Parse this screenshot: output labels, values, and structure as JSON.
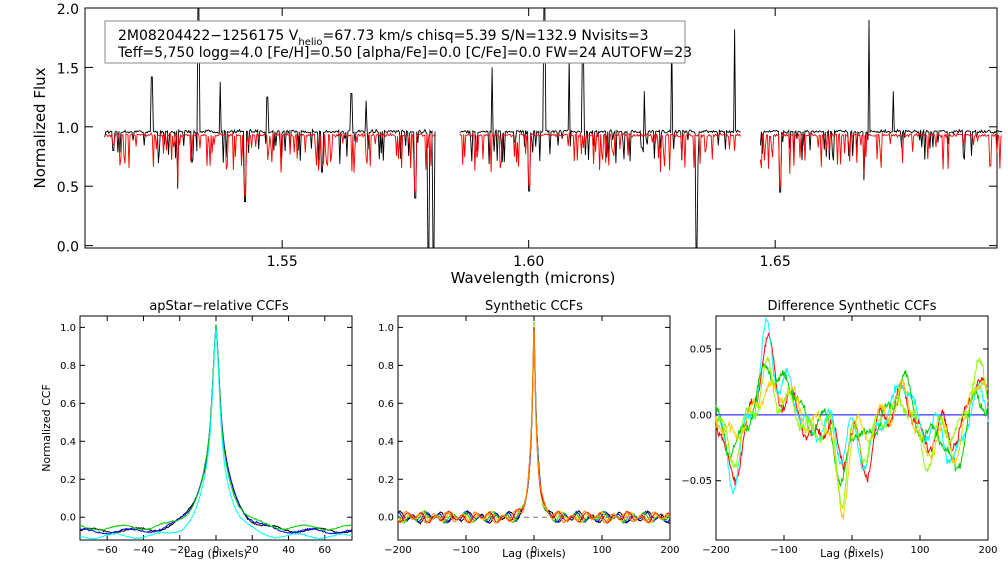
{
  "chart_data": [
    {
      "type": "line",
      "panel": "spectrum",
      "title": "",
      "xlabel": "Wavelength (microns)",
      "ylabel": "Normalized Flux",
      "xlim": [
        1.51,
        1.695
      ],
      "ylim": [
        -0.02,
        2.0
      ],
      "x_ticks": [
        1.55,
        1.6,
        1.65
      ],
      "y_ticks": [
        0.0,
        0.5,
        1.0,
        1.5,
        2.0
      ],
      "info_line1": "2M08204422−1256175  V",
      "info_sub": "helio",
      "info_line1b": "=67.73 km/s  chisq=5.39  S/N=132.9  Nvisits=3",
      "info_line2": "Teff=5,750 logg=4.0 [Fe/H]=0.50 [alpha/Fe]=0.0 [C/Fe]=0.0 FW=24 AUTOFW=23",
      "chips": [
        [
          1.514,
          1.581
        ],
        [
          1.586,
          1.643
        ],
        [
          1.647,
          1.696
        ]
      ],
      "series": [
        {
          "color": "#000000",
          "level": 0.96
        },
        {
          "color": "#ff0000",
          "level": 0.93
        }
      ],
      "spikes": [
        {
          "x": 1.5236,
          "y": 1.42
        },
        {
          "x": 1.533,
          "y": 2.0
        },
        {
          "x": 1.5374,
          "y": 1.38
        },
        {
          "x": 1.5424,
          "y": 1.72
        },
        {
          "x": 1.547,
          "y": 1.25
        },
        {
          "x": 1.564,
          "y": 1.28
        },
        {
          "x": 1.567,
          "y": 1.22
        },
        {
          "x": 1.5926,
          "y": 1.5
        },
        {
          "x": 1.6032,
          "y": 2.0
        },
        {
          "x": 1.6082,
          "y": 1.58
        },
        {
          "x": 1.611,
          "y": 1.68
        },
        {
          "x": 1.6234,
          "y": 1.3
        },
        {
          "x": 1.629,
          "y": 1.78
        },
        {
          "x": 1.634,
          "y": 1.4
        },
        {
          "x": 1.6418,
          "y": 1.82
        },
        {
          "x": 1.651,
          "y": 1.62
        },
        {
          "x": 1.669,
          "y": 1.9
        },
        {
          "x": 1.674,
          "y": 1.3
        }
      ],
      "dips": [
        {
          "x": 1.5158,
          "y": 0.8
        },
        {
          "x": 1.5288,
          "y": 0.48
        },
        {
          "x": 1.5424,
          "y": 0.37
        },
        {
          "x": 1.558,
          "y": 0.62
        },
        {
          "x": 1.5769,
          "y": 0.4
        },
        {
          "x": 1.5797,
          "y": -0.02
        },
        {
          "x": 1.5806,
          "y": -0.02
        },
        {
          "x": 1.6,
          "y": 0.46
        },
        {
          "x": 1.634,
          "y": -0.02
        },
        {
          "x": 1.651,
          "y": 0.45
        },
        {
          "x": 1.668,
          "y": 0.55
        }
      ]
    },
    {
      "type": "line",
      "panel": "apstar-ccf",
      "title": "apStar−relative CCFs",
      "xlabel": "Lag (pixels)",
      "ylabel": "Normalized CCF",
      "xlim": [
        -75,
        75
      ],
      "ylim": [
        -0.12,
        1.06
      ],
      "x_ticks": [
        -60,
        -40,
        -20,
        0,
        20,
        40,
        60
      ],
      "y_ticks": [
        0.0,
        0.2,
        0.4,
        0.6,
        0.8,
        1.0
      ],
      "series": [
        {
          "color": "#000000",
          "width": 7.5,
          "base": -0.07
        },
        {
          "color": "#0000ff",
          "width": 7.8,
          "base": -0.075
        },
        {
          "color": "#00cc00",
          "width": 7.0,
          "base": -0.055
        },
        {
          "color": "#00ffff",
          "width": 6.5,
          "base": -0.1
        }
      ]
    },
    {
      "type": "line",
      "panel": "synthetic-ccf",
      "title": "Synthetic CCFs",
      "xlabel": "Lag (pixels)",
      "ylabel": "",
      "xlim": [
        -200,
        200
      ],
      "ylim": [
        -0.12,
        1.06
      ],
      "x_ticks": [
        -200,
        -100,
        0,
        100,
        200
      ],
      "y_ticks": [
        0.0,
        0.2,
        0.4,
        0.6,
        0.8,
        1.0
      ],
      "series": [
        {
          "color": "#000000"
        },
        {
          "color": "#0000ff"
        },
        {
          "color": "#00cc00"
        },
        {
          "color": "#ffcc00"
        },
        {
          "color": "#ff0000"
        },
        {
          "color": "#ff8800"
        }
      ]
    },
    {
      "type": "line",
      "panel": "difference-ccf",
      "title": "Difference Synthetic CCFs",
      "xlabel": "Lag (pixels)",
      "ylabel": "",
      "xlim": [
        -200,
        200
      ],
      "ylim": [
        -0.095,
        0.075
      ],
      "x_ticks": [
        -200,
        -100,
        0,
        100,
        200
      ],
      "y_ticks": [
        -0.05,
        0.0,
        0.05
      ],
      "series": [
        {
          "color": "#ff0000"
        },
        {
          "color": "#00ffff"
        },
        {
          "color": "#00cc00"
        },
        {
          "color": "#ffcc00"
        },
        {
          "color": "#88ff00"
        }
      ],
      "zero_line_color": "#0000ff"
    }
  ]
}
